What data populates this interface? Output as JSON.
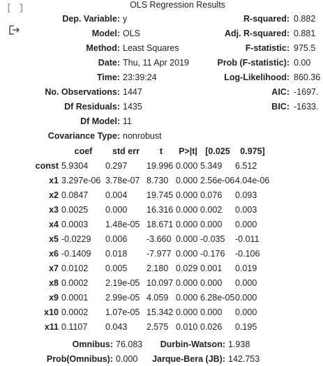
{
  "cell": {
    "prompt": "[ ]",
    "output_icon": "output-redirect-icon"
  },
  "summary": {
    "title": "OLS Regression Results",
    "top_rows": [
      [
        "Dep. Variable:",
        "y",
        "R-squared:",
        "0.882"
      ],
      [
        "Model:",
        "OLS",
        "Adj. R-squared:",
        "0.881"
      ],
      [
        "Method:",
        "Least Squares",
        "F-statistic:",
        "975.5"
      ],
      [
        "Date:",
        "Thu, 11 Apr 2019",
        "Prob (F-statistic):",
        "0.00"
      ],
      [
        "Time:",
        "23:39:24",
        "Log-Likelihood:",
        "860.36"
      ],
      [
        "No. Observations:",
        "1447",
        "AIC:",
        "-1697."
      ],
      [
        "Df Residuals:",
        "1435",
        "BIC:",
        "-1633."
      ],
      [
        "Df Model:",
        "11",
        "",
        ""
      ],
      [
        "Covariance Type:",
        "nonrobust",
        "",
        ""
      ]
    ],
    "coef_headers": [
      "",
      "coef",
      "std err",
      "t",
      "P>|t|",
      "[0.025",
      "0.975]"
    ],
    "coef_rows": [
      [
        "const",
        "5.9304",
        "0.297",
        "19.996",
        "0.000",
        "5.349",
        "6.512"
      ],
      [
        "x1",
        "3.297e-06",
        "3.78e-07",
        "8.730",
        "0.000",
        "2.56e-06",
        "4.04e-06"
      ],
      [
        "x2",
        "0.0847",
        "0.004",
        "19.745",
        "0.000",
        "0.076",
        "0.093"
      ],
      [
        "x3",
        "0.0025",
        "0.000",
        "16.316",
        "0.000",
        "0.002",
        "0.003"
      ],
      [
        "x4",
        "0.0003",
        "1.48e-05",
        "18.671",
        "0.000",
        "0.000",
        "0.000"
      ],
      [
        "x5",
        "-0.0229",
        "0.006",
        "-3.660",
        "0.000",
        "-0.035",
        "-0.011"
      ],
      [
        "x6",
        "-0.1409",
        "0.018",
        "-7.977",
        "0.000",
        "-0.176",
        "-0.106"
      ],
      [
        "x7",
        "0.0102",
        "0.005",
        "2.180",
        "0.029",
        "0.001",
        "0.019"
      ],
      [
        "x8",
        "0.0002",
        "2.19e-05",
        "10.097",
        "0.000",
        "0.000",
        "0.000"
      ],
      [
        "x9",
        "0.0001",
        "2.99e-05",
        "4.059",
        "0.000",
        "6.28e-05",
        "0.000"
      ],
      [
        "x10",
        "0.0002",
        "1.07e-05",
        "15.342",
        "0.000",
        "0.000",
        "0.000"
      ],
      [
        "x11",
        "0.1107",
        "0.043",
        "2.575",
        "0.010",
        "0.026",
        "0.195"
      ]
    ],
    "bottom_rows": [
      [
        "Omnibus:",
        "76.083",
        "Durbin-Watson:",
        "1.938"
      ],
      [
        "Prob(Omnibus):",
        "0.000",
        "Jarque-Bera (JB):",
        "142.753"
      ]
    ]
  }
}
